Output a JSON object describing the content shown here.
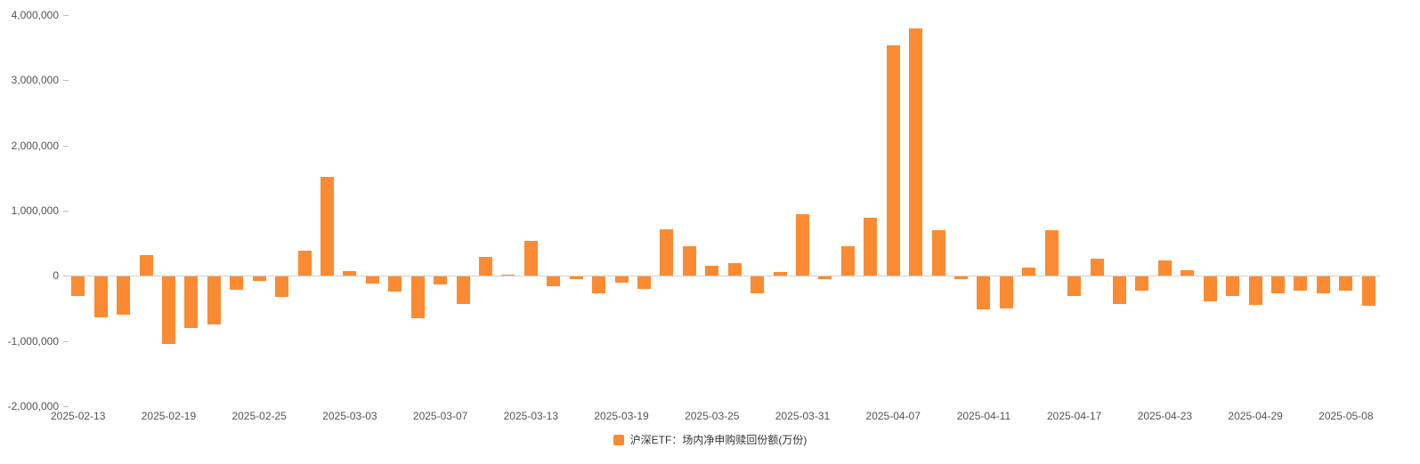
{
  "chart_data": {
    "type": "bar",
    "title": "",
    "xlabel": "",
    "ylabel": "",
    "legend_label": "沪深ETF：场内净申购赎回份额(万份)",
    "legend_position": "bottom",
    "grid": false,
    "bar_color": "#fa8b32",
    "axis_line_color": "#cfcfcf",
    "ylim": [
      -2000000,
      4000000
    ],
    "y_ticks": [
      -2000000,
      -1000000,
      0,
      1000000,
      2000000,
      3000000,
      4000000
    ],
    "y_tick_labels": [
      "-2,000,000",
      "-1,000,000",
      "0",
      "1,000,000",
      "2,000,000",
      "3,000,000",
      "4,000,000"
    ],
    "x_axis_labels": [
      "2025-02-13",
      "2025-02-19",
      "2025-02-25",
      "2025-03-03",
      "2025-03-07",
      "2025-03-13",
      "2025-03-19",
      "2025-03-25",
      "2025-03-31",
      "2025-04-07",
      "2025-04-11",
      "2025-04-17",
      "2025-04-23",
      "2025-04-29",
      "2025-05-08"
    ],
    "categories": [
      "2025-02-13",
      "2025-02-14",
      "2025-02-17",
      "2025-02-18",
      "2025-02-19",
      "2025-02-20",
      "2025-02-21",
      "2025-02-24",
      "2025-02-25",
      "2025-02-26",
      "2025-02-27",
      "2025-02-28",
      "2025-03-03",
      "2025-03-04",
      "2025-03-05",
      "2025-03-06",
      "2025-03-07",
      "2025-03-10",
      "2025-03-11",
      "2025-03-12",
      "2025-03-13",
      "2025-03-14",
      "2025-03-17",
      "2025-03-18",
      "2025-03-19",
      "2025-03-20",
      "2025-03-21",
      "2025-03-24",
      "2025-03-25",
      "2025-03-26",
      "2025-03-27",
      "2025-03-28",
      "2025-03-31",
      "2025-04-01",
      "2025-04-02",
      "2025-04-03",
      "2025-04-07",
      "2025-04-08",
      "2025-04-09",
      "2025-04-10",
      "2025-04-11",
      "2025-04-14",
      "2025-04-15",
      "2025-04-16",
      "2025-04-17",
      "2025-04-18",
      "2025-04-21",
      "2025-04-22",
      "2025-04-23",
      "2025-04-24",
      "2025-04-25",
      "2025-04-28",
      "2025-04-29",
      "2025-04-30",
      "2025-05-06",
      "2025-05-07",
      "2025-05-08",
      "2025-05-09"
    ],
    "values": [
      -300000,
      -620000,
      -580000,
      320000,
      -1030000,
      -790000,
      -730000,
      -200000,
      -70000,
      -310000,
      390000,
      1520000,
      70000,
      -110000,
      -230000,
      -630000,
      -120000,
      -420000,
      290000,
      20000,
      540000,
      -150000,
      -30000,
      -250000,
      -90000,
      -180000,
      710000,
      450000,
      160000,
      190000,
      -250000,
      60000,
      950000,
      -40000,
      460000,
      890000,
      3540000,
      3800000,
      700000,
      -30000,
      -500000,
      -480000,
      130000,
      700000,
      -300000,
      260000,
      -420000,
      -220000,
      240000,
      90000,
      -380000,
      -290000,
      -430000,
      -250000,
      -210000,
      -260000,
      -220000,
      -440000
    ]
  }
}
